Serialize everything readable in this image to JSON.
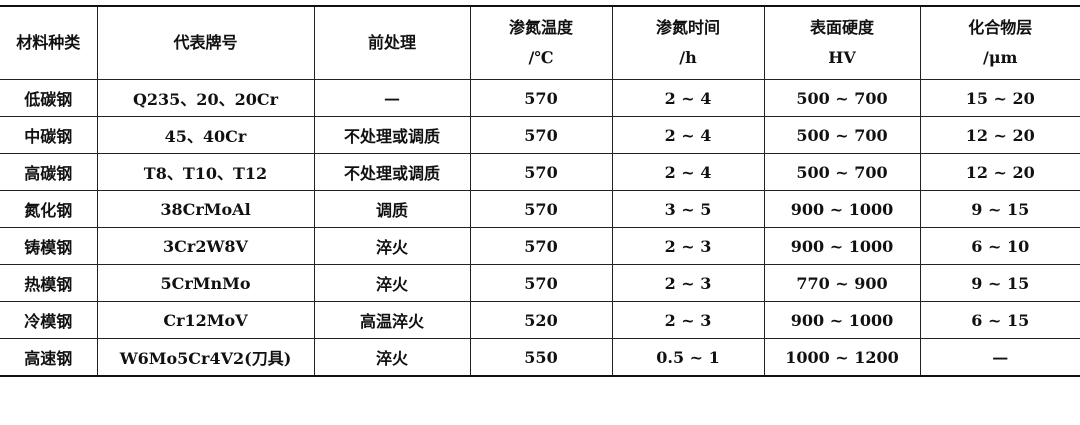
{
  "headers": [
    {
      "line1": "材料种类",
      "line2": ""
    },
    {
      "line1": "代表牌号",
      "line2": ""
    },
    {
      "line1": "前处理",
      "line2": ""
    },
    {
      "line1": "渗氮温度",
      "line2": "/℃"
    },
    {
      "line1": "渗氮时间",
      "line2": "/h"
    },
    {
      "line1": "表面硬度",
      "line2": "HV"
    },
    {
      "line1": "化合物层",
      "line2": "/μm"
    }
  ],
  "rows": [
    [
      "低碳钢",
      "Q235、20、20Cr",
      "—",
      "570",
      "2 ~ 4",
      "500 ~ 700",
      "15 ~ 20"
    ],
    [
      "中碳钢",
      "45、40Cr",
      "不处理或调质",
      "570",
      "2 ~ 4",
      "500 ~ 700",
      "12 ~ 20"
    ],
    [
      "高碳钢",
      "T8、T10、T12",
      "不处理或调质",
      "570",
      "2 ~ 4",
      "500 ~ 700",
      "12 ~ 20"
    ],
    [
      "氮化钢",
      "38CrMoAl",
      "调质",
      "570",
      "3 ~ 5",
      "900 ~ 1000",
      "9 ~ 15"
    ],
    [
      "铸模钢",
      "3Cr2W8V",
      "淬火",
      "570",
      "2 ~ 3",
      "900 ~ 1000",
      "6 ~ 10"
    ],
    [
      "热模钢",
      "5CrMnMo",
      "淬火",
      "570",
      "2 ~ 3",
      "770 ~ 900",
      "9 ~ 15"
    ],
    [
      "冷模钢",
      "Cr12MoV",
      "高温淬火",
      "520",
      "2 ~ 3",
      "900 ~ 1000",
      "6 ~ 15"
    ],
    [
      "高速钢",
      "W6Mo5Cr4V2(刀具)",
      "淬火",
      "550",
      "0.5 ~ 1",
      "1000 ~ 1200",
      "—"
    ]
  ]
}
